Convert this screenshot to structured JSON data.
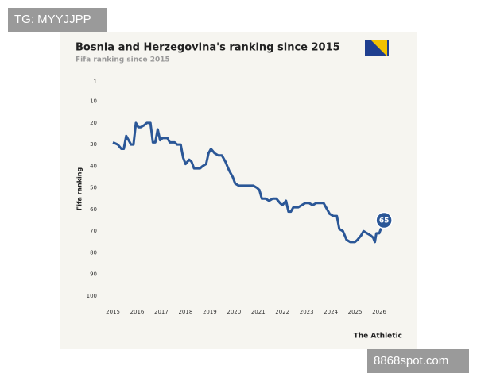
{
  "chart_data": {
    "type": "line",
    "title": "Bosnia and Herzegovina's ranking since 2015",
    "subtitle": "Fifa ranking since 2015",
    "y_label": "Fifa ranking",
    "source": "The Athletic",
    "color": "#2b5797",
    "inverted_y": true,
    "grid": false,
    "xlim": [
      2014.5,
      2027
    ],
    "xticks": [
      2015,
      2016,
      2017,
      2018,
      2019,
      2020,
      2021,
      2022,
      2023,
      2024,
      2025,
      2026
    ],
    "ylim": [
      1,
      100
    ],
    "yticks": [
      1,
      10,
      20,
      30,
      40,
      50,
      60,
      70,
      80,
      90,
      100
    ],
    "x": [
      2015.0,
      2015.2,
      2015.35,
      2015.45,
      2015.55,
      2015.75,
      2015.85,
      2015.95,
      2016.05,
      2016.15,
      2016.3,
      2016.4,
      2016.55,
      2016.65,
      2016.75,
      2016.85,
      2016.95,
      2017.05,
      2017.25,
      2017.35,
      2017.55,
      2017.65,
      2017.8,
      2017.9,
      2018.0,
      2018.15,
      2018.25,
      2018.35,
      2018.6,
      2018.7,
      2018.85,
      2018.95,
      2019.05,
      2019.2,
      2019.35,
      2019.5,
      2019.65,
      2019.8,
      2019.95,
      2020.05,
      2020.2,
      2020.5,
      2020.8,
      2020.95,
      2021.05,
      2021.15,
      2021.3,
      2021.45,
      2021.6,
      2021.75,
      2021.9,
      2022.0,
      2022.15,
      2022.25,
      2022.35,
      2022.45,
      2022.65,
      2022.8,
      2022.95,
      2023.1,
      2023.25,
      2023.4,
      2023.5,
      2023.7,
      2023.85,
      2023.95,
      2024.1,
      2024.25,
      2024.35,
      2024.5,
      2024.65,
      2024.8,
      2025.0,
      2025.1,
      2025.25,
      2025.35,
      2025.5,
      2025.65,
      2025.75,
      2025.82,
      2025.88,
      2026.0,
      2026.1,
      2026.2
    ],
    "values": [
      29,
      30,
      32,
      32,
      26,
      30,
      30,
      20,
      22,
      22,
      21,
      20,
      20,
      29,
      29,
      23,
      28,
      27,
      27,
      29,
      29,
      30,
      30,
      36,
      39,
      37,
      38,
      41,
      41,
      40,
      39,
      34,
      32,
      34,
      35,
      35,
      38,
      42,
      45,
      48,
      49,
      49,
      49,
      50,
      51,
      55,
      55,
      56,
      55,
      55,
      57,
      58,
      56,
      61,
      61,
      59,
      59,
      58,
      57,
      57,
      58,
      57,
      57,
      57,
      60,
      62,
      63,
      63,
      69,
      70,
      74,
      75,
      75,
      74,
      72,
      70,
      71,
      72,
      73,
      75,
      71,
      71,
      68,
      65
    ]
  },
  "overlays": [
    "TG: MYYJJPP",
    "8868spot.com"
  ]
}
